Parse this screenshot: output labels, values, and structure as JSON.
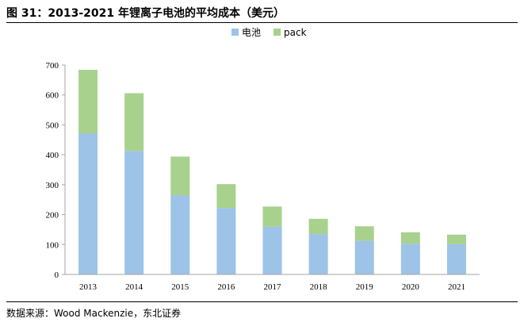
{
  "figure": {
    "title": "图 31：2013-2021 年锂离子电池的平均成本（美元）",
    "source": "数据来源：Wood Mackenzie，东北证券"
  },
  "chart_data": {
    "type": "bar",
    "stacked": true,
    "categories": [
      "2013",
      "2014",
      "2015",
      "2016",
      "2017",
      "2018",
      "2019",
      "2020",
      "2021"
    ],
    "series": [
      {
        "name": "电池",
        "color": "#9dc3e6",
        "values": [
          472,
          413,
          265,
          222,
          160,
          135,
          113,
          103,
          101
        ]
      },
      {
        "name": "pack",
        "color": "#a9d18e",
        "values": [
          212,
          193,
          129,
          80,
          67,
          51,
          48,
          38,
          32
        ]
      }
    ],
    "ylim": [
      0,
      700
    ],
    "yticks": [
      0,
      100,
      200,
      300,
      400,
      500,
      600,
      700
    ],
    "legend_position": "top-center",
    "grid": false
  }
}
